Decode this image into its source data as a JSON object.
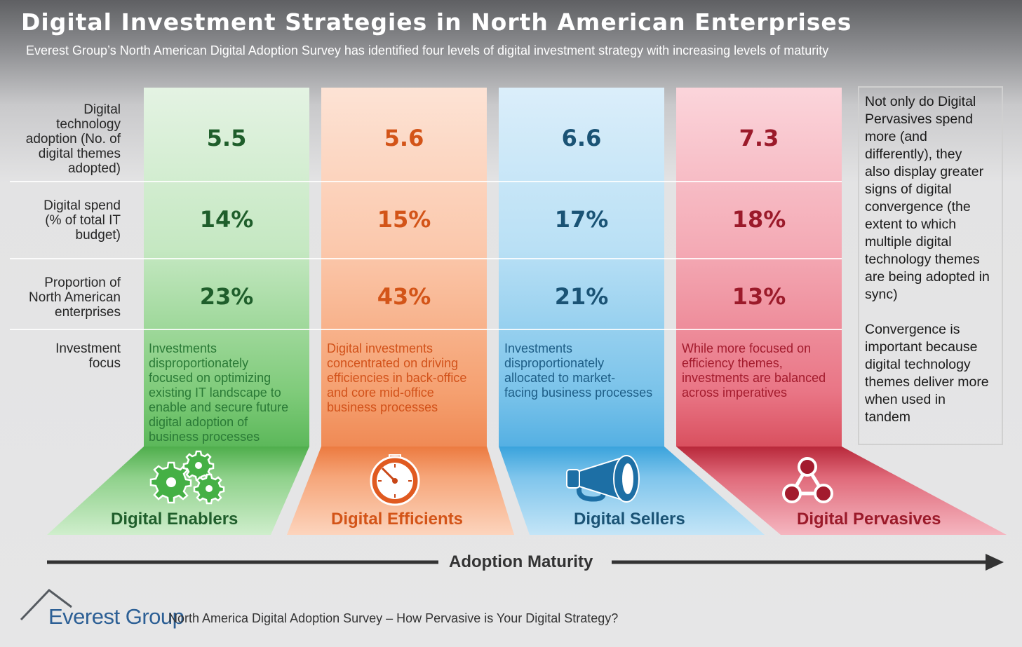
{
  "header": {
    "title": "Digital Investment Strategies in North American Enterprises",
    "subtitle": "Everest Group’s North American Digital Adoption Survey has identified four levels of digital investment strategy with increasing levels of maturity"
  },
  "row_labels": {
    "adoption": [
      "Digital",
      "technology",
      "adoption (No. of",
      "digital themes",
      "adopted)"
    ],
    "spend": [
      "Digital spend",
      "(% of total IT",
      "budget)"
    ],
    "proportion": [
      "Proportion of",
      "North American",
      "enterprises"
    ],
    "focus": [
      "Investment",
      "focus"
    ]
  },
  "segments": [
    {
      "name": "Digital Enablers",
      "adoption": "5.5",
      "spend": "14%",
      "proportion": "23%",
      "focus_lines": [
        "Investments",
        "disproportionately",
        "focused on optimizing",
        "existing IT landscape to",
        "enable and secure future",
        "digital adoption of",
        "business processes"
      ],
      "icon": "gears-icon",
      "color": "#1f5e2b"
    },
    {
      "name": "Digital Efficients",
      "adoption": "5.6",
      "spend": "15%",
      "proportion": "43%",
      "focus_lines": [
        "Digital investments",
        "concentrated on driving",
        "efficiencies in back-office",
        "and core mid-office",
        "business processes"
      ],
      "icon": "stopwatch-icon",
      "color": "#d35418"
    },
    {
      "name": "Digital Sellers",
      "adoption": "6.6",
      "spend": "17%",
      "proportion": "21%",
      "focus_lines": [
        "Investments",
        "disproportionately",
        "allocated to market-",
        "facing business processes"
      ],
      "icon": "megaphone-icon",
      "color": "#1a5375"
    },
    {
      "name": "Digital Pervasives",
      "adoption": "7.3",
      "spend": "18%",
      "proportion": "13%",
      "focus_lines": [
        "While more focused on",
        "efficiency themes,",
        "investments are balanced",
        "across imperatives"
      ],
      "icon": "network-icon",
      "color": "#9b1a2a"
    }
  ],
  "side_note": {
    "para1_lines": [
      "Not only do Digital",
      "Pervasives spend",
      "more (and",
      "differently), they",
      "also display greater",
      "signs of digital",
      "convergence (the",
      "extent to which",
      "multiple digital",
      "technology themes",
      "are being adopted in",
      "sync)"
    ],
    "para2_lines": [
      "Convergence is",
      "important because",
      "digital technology",
      "themes deliver more",
      "when used in",
      "tandem"
    ]
  },
  "axis": {
    "label": "Adoption Maturity"
  },
  "footer": {
    "logo_text": "Everest Group",
    "caption": "North America Digital Adoption Survey – How Pervasive is Your Digital Strategy?"
  }
}
